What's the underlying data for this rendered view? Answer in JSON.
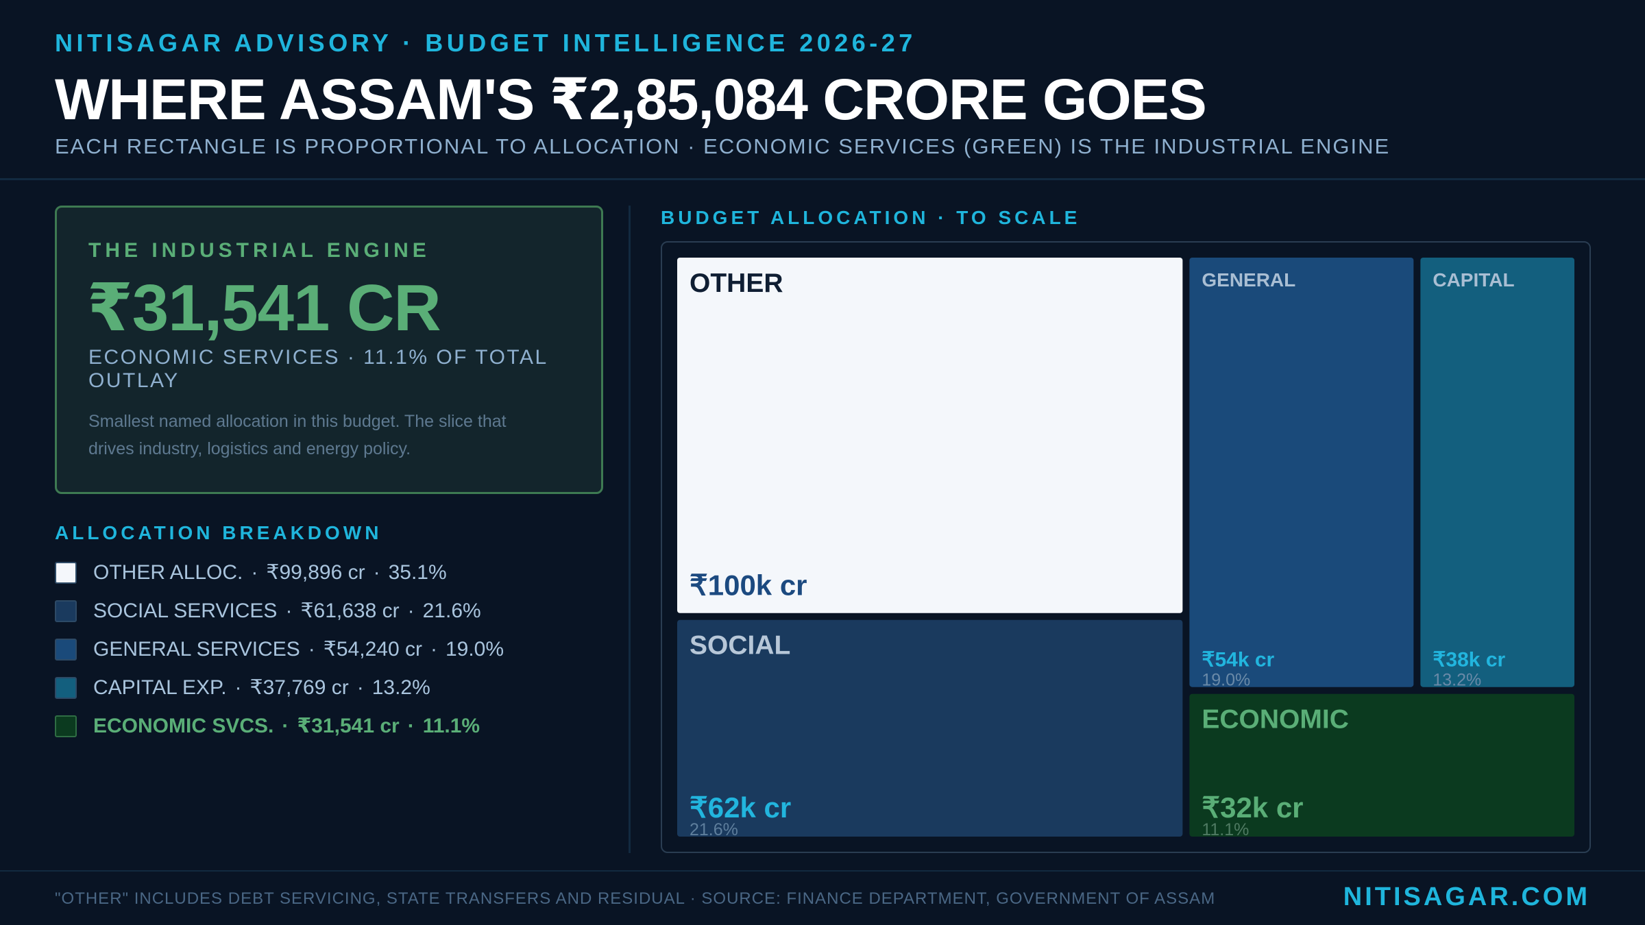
{
  "header": {
    "kicker": "NITISAGAR ADVISORY · BUDGET INTELLIGENCE 2026-27",
    "title": "WHERE ASSAM'S ₹2,85,084 CRORE GOES",
    "subtitle": "EACH RECTANGLE IS PROPORTIONAL TO ALLOCATION · ECONOMIC SERVICES (GREEN) IS THE INDUSTRIAL ENGINE"
  },
  "engine_card": {
    "kicker": "THE INDUSTRIAL ENGINE",
    "value": "₹31,541 CR",
    "label": "ECONOMIC SERVICES · 11.1% OF TOTAL OUTLAY",
    "note": "Smallest named allocation in this budget. The slice that drives industry, logistics and energy policy."
  },
  "breakdown": {
    "heading": "ALLOCATION BREAKDOWN",
    "items": [
      {
        "name": "OTHER ALLOC.",
        "amount": "₹99,896 cr",
        "share": "35.1%",
        "color": "#f4f7fb"
      },
      {
        "name": "SOCIAL SERVICES",
        "amount": "₹61,638 cr",
        "share": "21.6%",
        "color": "#1a3a5e"
      },
      {
        "name": "GENERAL SERVICES",
        "amount": "₹54,240 cr",
        "share": "19.0%",
        "color": "#1a4a7a"
      },
      {
        "name": "CAPITAL EXP.",
        "amount": "₹37,769 cr",
        "share": "13.2%",
        "color": "#135f7e"
      },
      {
        "name": "ECONOMIC SVCS.",
        "amount": "₹31,541 cr",
        "share": "11.1%",
        "color": "#0b3a1f"
      }
    ]
  },
  "chart_heading": "BUDGET ALLOCATION · TO SCALE",
  "chart_data": {
    "type": "treemap",
    "unit": "₹ crore",
    "total": 285084,
    "items": [
      {
        "label": "OTHER",
        "value": 99896,
        "value_label": "₹100k cr",
        "share_label": "",
        "fill": "#f4f7fb",
        "label_color": "#0f1e33",
        "value_color": "#1c4a80",
        "share_color": ""
      },
      {
        "label": "SOCIAL",
        "value": 61638,
        "value_label": "₹62k cr",
        "share_label": "21.6%",
        "fill": "#1a3a5e",
        "label_color": "#b7c7d8",
        "value_color": "#22b5de",
        "share_color": "#5e7e9c"
      },
      {
        "label": "GENERAL",
        "value": 54240,
        "value_label": "₹54k cr",
        "share_label": "19.0%",
        "fill": "#1a4a7a",
        "label_color": "#a9bed3",
        "value_color": "#22b5de",
        "share_color": "#6a8aa8"
      },
      {
        "label": "CAPITAL",
        "value": 37769,
        "value_label": "₹38k cr",
        "share_label": "13.2%",
        "fill": "#135f7e",
        "label_color": "#a9bed3",
        "value_color": "#22b5de",
        "share_color": "#6a8aa8"
      },
      {
        "label": "ECONOMIC",
        "value": 31541,
        "value_label": "₹32k cr",
        "share_label": "11.1%",
        "fill": "#0b3a1f",
        "label_color": "#5aae77",
        "value_color": "#5aae77",
        "share_color": "#4f7a62"
      }
    ]
  },
  "footer": {
    "note": "\"OTHER\" INCLUDES DEBT SERVICING, STATE TRANSFERS AND RESIDUAL · SOURCE: FINANCE DEPARTMENT, GOVERNMENT OF ASSAM",
    "brand": "NITISAGAR.COM"
  }
}
